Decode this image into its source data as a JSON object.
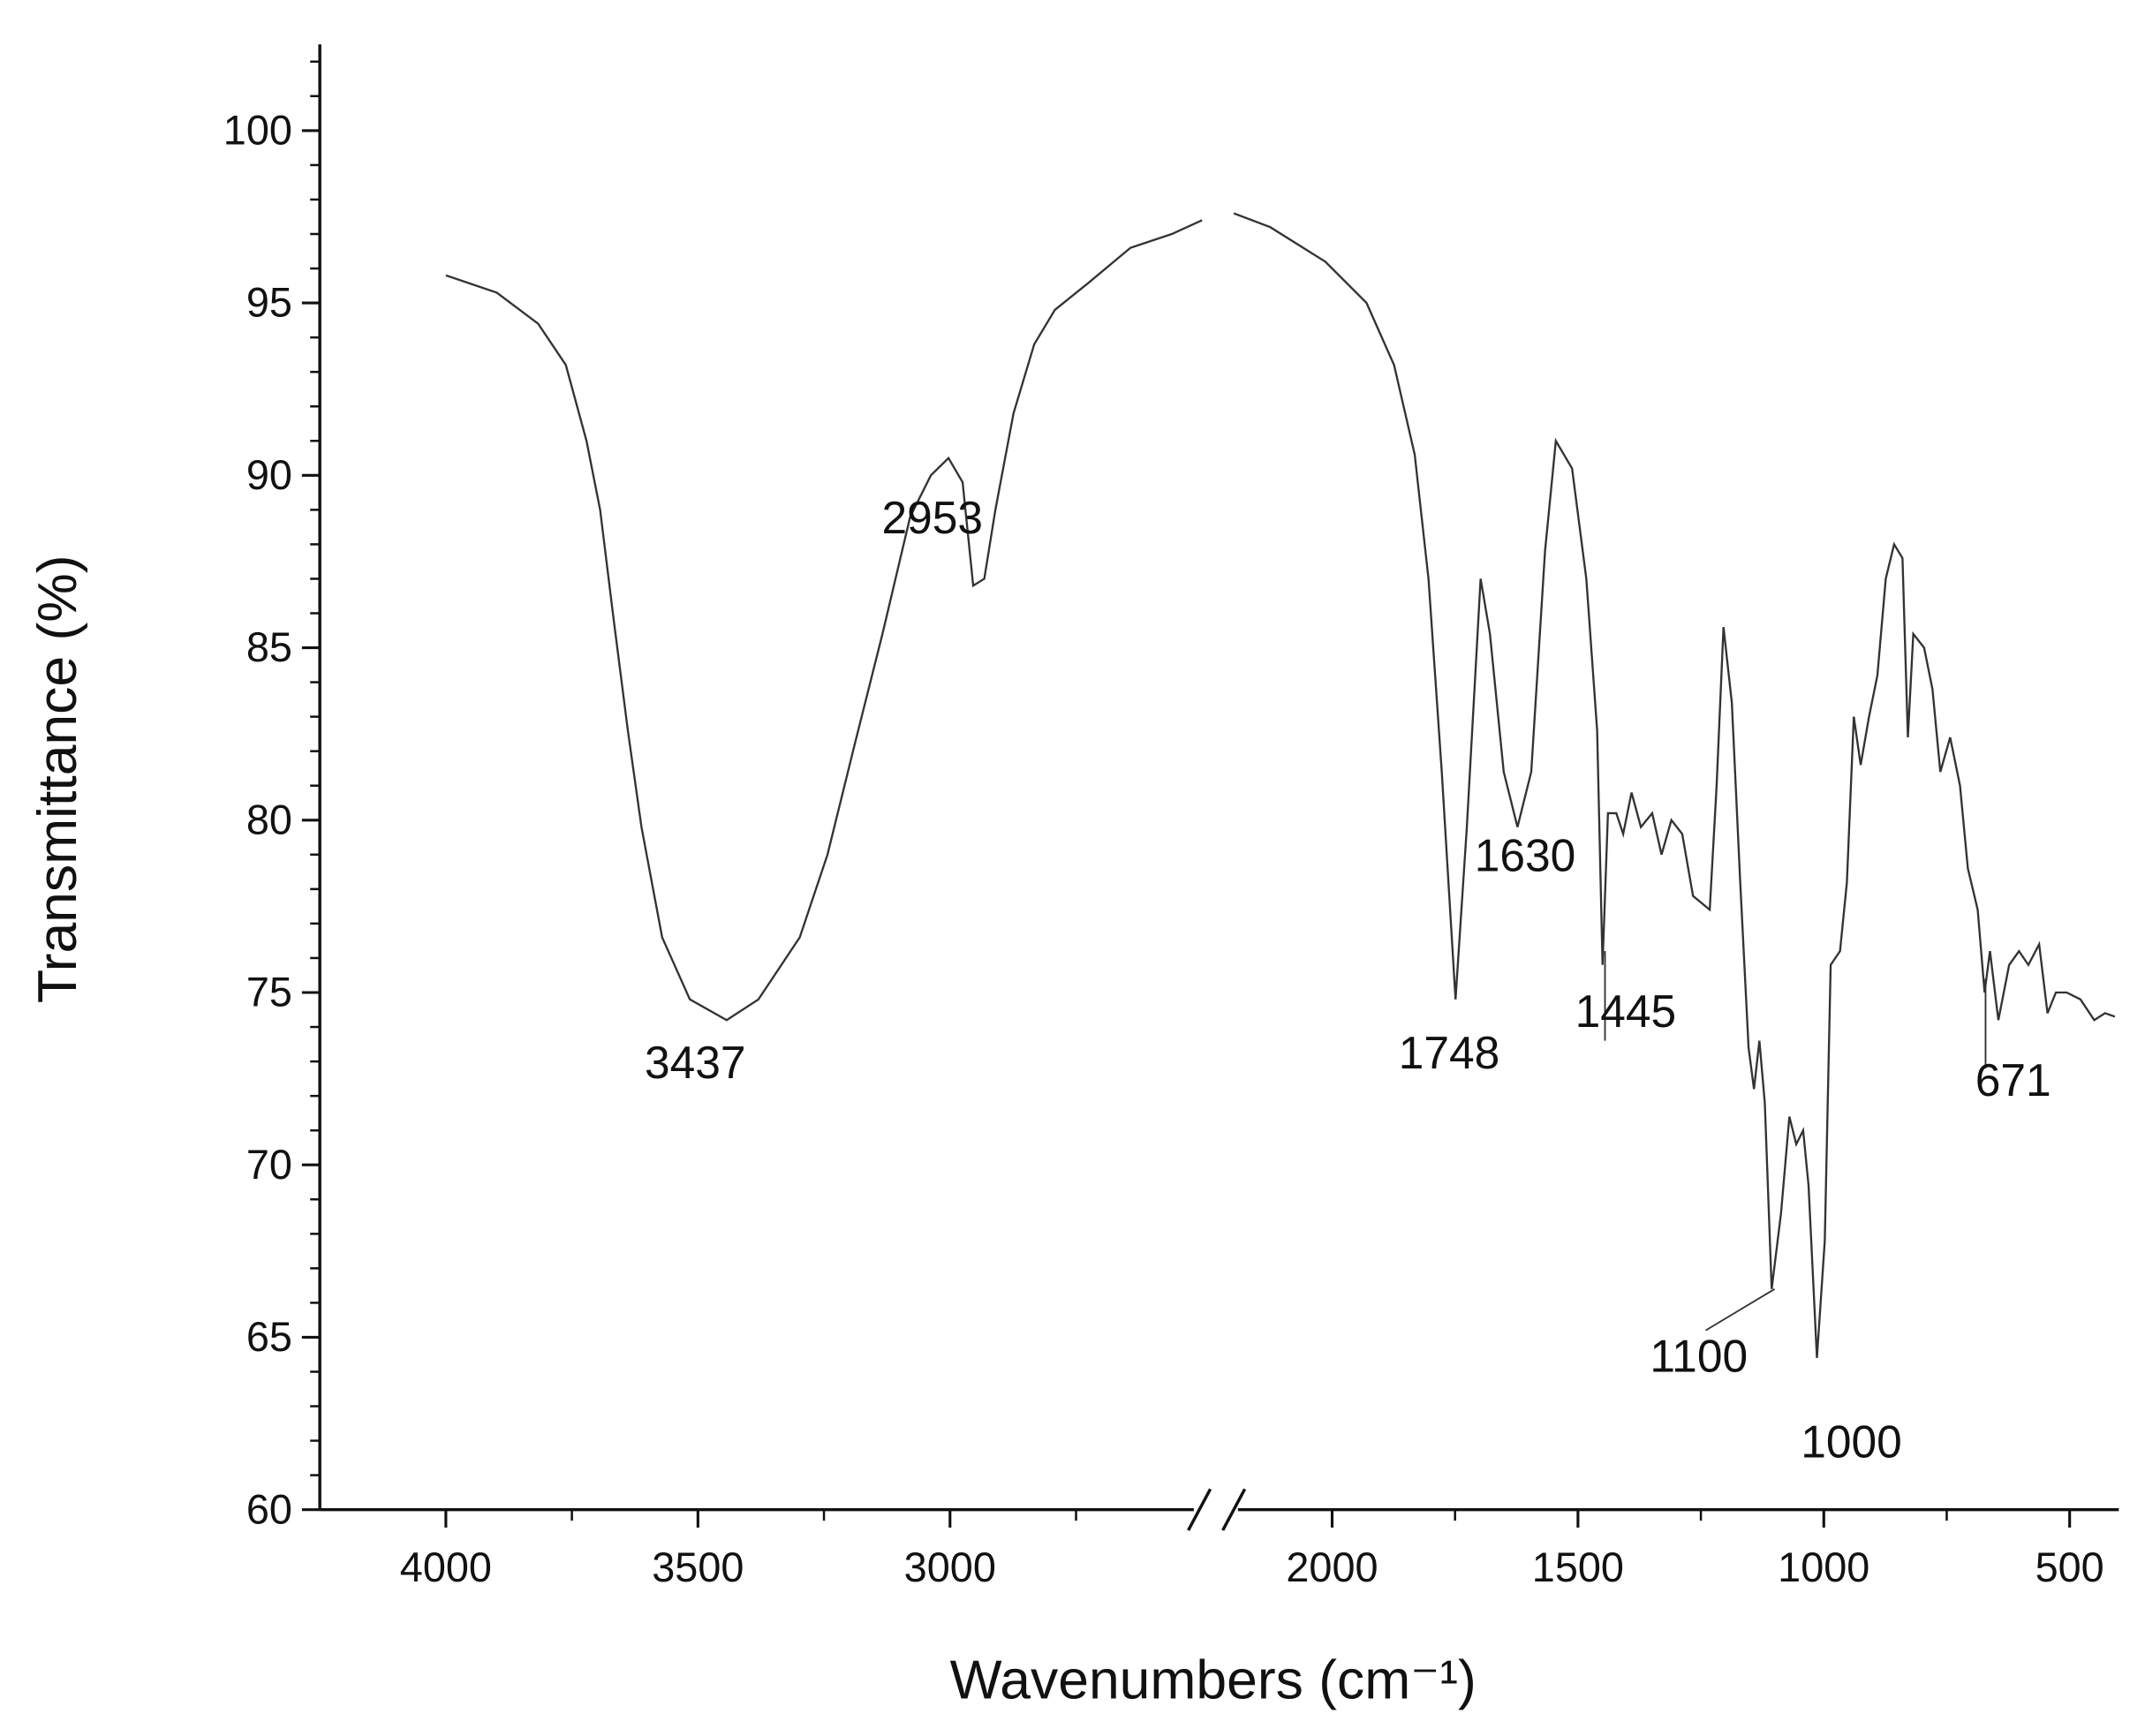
{
  "chart_data": {
    "type": "line",
    "x_label": "Wavenumbers (cm⁻¹)",
    "y_label": "Transmittance (%)",
    "xlim": [
      4250,
      400
    ],
    "xbreak": [
      2500,
      2200
    ],
    "xticks": [
      4000,
      3500,
      3000,
      2000,
      1500,
      1000,
      500
    ],
    "xminor_ticks": [
      3750,
      3250,
      2750,
      1750,
      1250,
      750
    ],
    "ylim": [
      60,
      102.5
    ],
    "yticks": [
      60,
      65,
      70,
      75,
      80,
      85,
      90,
      95,
      100
    ],
    "yminor_ticks": [
      61,
      62,
      63,
      64,
      66,
      67,
      68,
      69,
      71,
      72,
      73,
      74,
      76,
      77,
      78,
      79,
      81,
      82,
      83,
      84,
      86,
      87,
      88,
      89,
      91,
      92,
      93,
      94,
      96,
      97,
      98,
      99,
      101,
      102
    ],
    "color": "#333333",
    "x": [
      4000,
      3899,
      3817,
      3762,
      3721,
      3694,
      3667,
      3639,
      3612,
      3571,
      3516,
      3443,
      3380,
      3298,
      3243,
      3189,
      3134,
      3079,
      3038,
      3003,
      2975,
      2954,
      2932,
      2910,
      2874,
      2833,
      2792,
      2724,
      2642,
      2560,
      2500,
      2350,
      2200,
      2126,
      2014,
      1930,
      1874,
      1832,
      1804,
      1777,
      1749,
      1726,
      1698,
      1679,
      1651,
      1623,
      1595,
      1567,
      1545,
      1512,
      1483,
      1461,
      1450,
      1439,
      1422,
      1408,
      1391,
      1372,
      1349,
      1330,
      1310,
      1288,
      1266,
      1232,
      1218,
      1204,
      1187,
      1170,
      1153,
      1142,
      1131,
      1120,
      1106,
      1087,
      1070,
      1056,
      1042,
      1031,
      1014,
      998,
      986,
      967,
      953,
      939,
      925,
      908,
      891,
      874,
      857,
      840,
      829,
      818,
      796,
      779,
      763,
      743,
      723,
      707,
      687,
      673,
      662,
      645,
      623,
      603,
      584,
      562,
      545,
      528,
      506,
      478,
      450,
      428,
      408
    ],
    "values": [
      95.8,
      95.3,
      94.4,
      93.2,
      91.0,
      89.0,
      85.8,
      82.6,
      79.8,
      76.6,
      74.8,
      74.2,
      74.8,
      76.6,
      79.0,
      82.2,
      85.4,
      88.8,
      90.0,
      90.5,
      89.8,
      86.8,
      87.0,
      89.0,
      91.8,
      93.8,
      94.8,
      95.6,
      96.6,
      97.0,
      97.4,
      null,
      97.6,
      97.2,
      96.2,
      95.0,
      93.2,
      90.6,
      87.0,
      81.4,
      74.8,
      79.8,
      87.0,
      85.4,
      81.4,
      79.8,
      81.4,
      87.8,
      91.0,
      90.2,
      87.0,
      82.6,
      75.8,
      80.2,
      80.2,
      79.6,
      80.8,
      79.8,
      80.2,
      79.0,
      80.0,
      79.6,
      77.8,
      77.4,
      81.0,
      85.6,
      83.4,
      78.2,
      73.4,
      72.2,
      73.6,
      71.8,
      66.4,
      68.6,
      71.4,
      70.6,
      71.0,
      69.4,
      64.4,
      67.8,
      75.8,
      76.2,
      78.2,
      83.0,
      81.6,
      83.0,
      84.2,
      87.0,
      88.0,
      87.6,
      82.4,
      85.4,
      85.0,
      83.8,
      81.4,
      82.4,
      81.0,
      78.6,
      77.4,
      75.0,
      76.2,
      74.2,
      75.8,
      76.2,
      75.8,
      76.4,
      74.4,
      75.0,
      75.0,
      74.8,
      74.2,
      74.4,
      74.3
    ],
    "annotations": [
      {
        "label": "3437",
        "x": 3437,
        "y": 74.2
      },
      {
        "label": "2953",
        "x": 2953,
        "y": 86.8
      },
      {
        "label": "1748",
        "x": 1748,
        "y": 74.8
      },
      {
        "label": "1630",
        "x": 1630,
        "y": 79.8
      },
      {
        "label": "1445",
        "x": 1445,
        "y": 75.8
      },
      {
        "label": "1100",
        "x": 1100,
        "y": 66.4
      },
      {
        "label": "1000",
        "x": 1000,
        "y": 64.4
      },
      {
        "label": "671",
        "x": 671,
        "y": 75.0
      }
    ]
  }
}
